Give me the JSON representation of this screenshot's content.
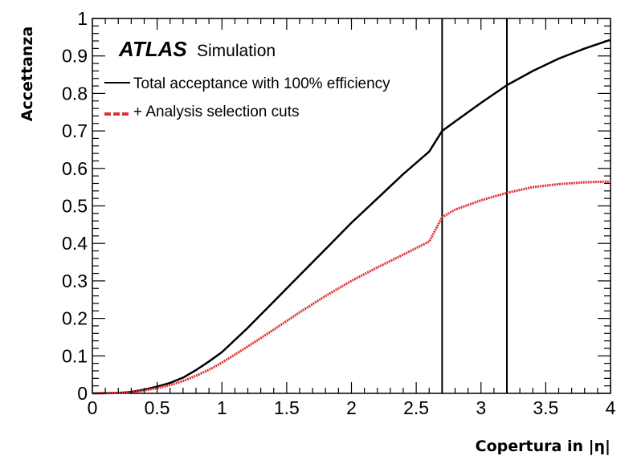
{
  "chart_data": {
    "type": "line",
    "xlabel": "Copertura in  |η|",
    "ylabel": "Accettanza",
    "xlim": [
      0,
      4
    ],
    "ylim": [
      0,
      1
    ],
    "x_ticks": [
      0,
      0.5,
      1,
      1.5,
      2,
      2.5,
      3,
      3.5,
      4
    ],
    "x_tick_labels": [
      "0",
      "0.5",
      "1",
      "1.5",
      "2",
      "2.5",
      "3",
      "3.5",
      "4"
    ],
    "y_ticks": [
      0,
      0.1,
      0.2,
      0.3,
      0.4,
      0.5,
      0.6,
      0.7,
      0.8,
      0.9,
      1
    ],
    "y_tick_labels": [
      "0",
      "0.1",
      "0.2",
      "0.3",
      "0.4",
      "0.5",
      "0.6",
      "0.7",
      "0.8",
      "0.9",
      "1"
    ],
    "experiment_label": "ATLAS",
    "experiment_sublabel": "Simulation",
    "vertical_lines": [
      2.7,
      3.2
    ],
    "grid": false,
    "legend_position": "top-left",
    "series": [
      {
        "name": "Total acceptance with 100% efficiency",
        "color": "#000000",
        "style": "solid",
        "x": [
          0,
          0.2,
          0.3,
          0.4,
          0.5,
          0.6,
          0.7,
          0.8,
          0.9,
          1.0,
          1.2,
          1.4,
          1.6,
          1.8,
          2.0,
          2.2,
          2.4,
          2.6,
          2.7,
          2.8,
          3.0,
          3.2,
          3.4,
          3.6,
          3.8,
          4.0
        ],
        "values": [
          0,
          0.001,
          0.004,
          0.01,
          0.018,
          0.028,
          0.042,
          0.062,
          0.085,
          0.11,
          0.175,
          0.245,
          0.315,
          0.385,
          0.455,
          0.52,
          0.585,
          0.645,
          0.7,
          0.725,
          0.775,
          0.822,
          0.86,
          0.893,
          0.92,
          0.943
        ]
      },
      {
        "name": "+ Analysis selection cuts",
        "color": "#e03030",
        "style": "dashed",
        "x": [
          0,
          0.2,
          0.3,
          0.4,
          0.5,
          0.6,
          0.7,
          0.8,
          0.9,
          1.0,
          1.2,
          1.4,
          1.6,
          1.8,
          2.0,
          2.2,
          2.4,
          2.6,
          2.7,
          2.8,
          3.0,
          3.2,
          3.4,
          3.6,
          3.8,
          4.0
        ],
        "values": [
          0,
          0.001,
          0.003,
          0.008,
          0.014,
          0.022,
          0.033,
          0.047,
          0.063,
          0.082,
          0.125,
          0.17,
          0.216,
          0.26,
          0.3,
          0.336,
          0.37,
          0.405,
          0.47,
          0.49,
          0.515,
          0.535,
          0.55,
          0.558,
          0.563,
          0.565
        ]
      }
    ]
  }
}
